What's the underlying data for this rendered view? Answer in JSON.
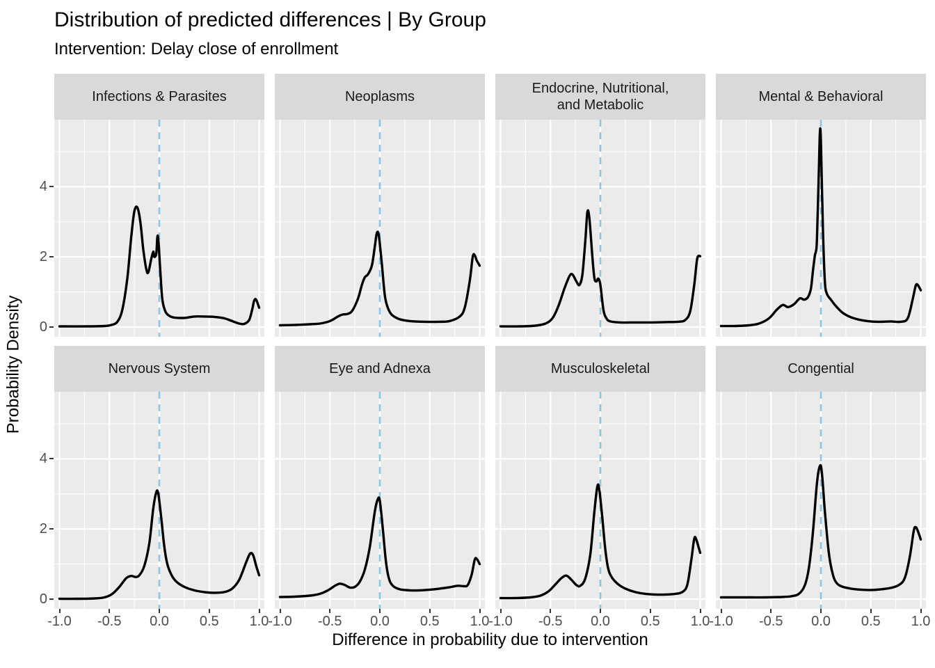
{
  "header": {
    "title": "Distribution of predicted differences | By Group",
    "subtitle": "Intervention: Delay close of enrollment"
  },
  "axes": {
    "x_label": "Difference in probability due to intervention",
    "y_label": "Probability Density",
    "x_ticks": [
      "-1.0",
      "-0.5",
      "0.0",
      "0.5",
      "1.0"
    ],
    "x_tick_values": [
      -1,
      -0.5,
      0,
      0.5,
      1
    ],
    "x_minor_values": [
      -0.75,
      -0.25,
      0.25,
      0.75
    ],
    "y_ticks": [
      "0",
      "2",
      "4"
    ],
    "y_tick_values": [
      0,
      2,
      4
    ],
    "y_minor_values": [
      1,
      3,
      5
    ],
    "x_range": [
      -1,
      1
    ],
    "y_range": [
      0,
      5.9
    ],
    "grid": "on"
  },
  "colors": {
    "panel_bg": "#EBEBEB",
    "strip_bg": "#D9D9D9",
    "gridline": "#FFFFFF",
    "curve": "#000000",
    "reference_line": "#8CC6E3",
    "tick_text": "#4D4D4D",
    "tick_mark": "#333333",
    "text": "#000000"
  },
  "chart_data": {
    "type": "line",
    "subtype": "faceted-density",
    "title": "Distribution of predicted differences | By Group",
    "subtitle": "Intervention: Delay close of enrollment",
    "xlabel": "Difference in probability due to intervention",
    "ylabel": "Probability Density",
    "xlim": [
      -1,
      1
    ],
    "ylim": [
      0,
      5.9
    ],
    "legend": "none",
    "reference_line_x": 0,
    "facets": [
      {
        "label": "Infections & Parasites",
        "points": [
          [
            -1,
            0.02
          ],
          [
            -0.7,
            0.02
          ],
          [
            -0.55,
            0.03
          ],
          [
            -0.48,
            0.06
          ],
          [
            -0.42,
            0.15
          ],
          [
            -0.37,
            0.5
          ],
          [
            -0.32,
            1.4
          ],
          [
            -0.28,
            2.6
          ],
          [
            -0.25,
            3.3
          ],
          [
            -0.22,
            3.41
          ],
          [
            -0.19,
            3.0
          ],
          [
            -0.16,
            2.2
          ],
          [
            -0.13,
            1.65
          ],
          [
            -0.11,
            1.56
          ],
          [
            -0.08,
            1.95
          ],
          [
            -0.06,
            2.15
          ],
          [
            -0.05,
            2.0
          ],
          [
            -0.03,
            2.1
          ],
          [
            -0.02,
            2.55
          ],
          [
            -0.01,
            2.5
          ],
          [
            0.01,
            1.6
          ],
          [
            0.03,
            0.8
          ],
          [
            0.06,
            0.45
          ],
          [
            0.1,
            0.32
          ],
          [
            0.15,
            0.27
          ],
          [
            0.25,
            0.26
          ],
          [
            0.35,
            0.3
          ],
          [
            0.45,
            0.3
          ],
          [
            0.55,
            0.29
          ],
          [
            0.65,
            0.25
          ],
          [
            0.72,
            0.18
          ],
          [
            0.8,
            0.1
          ],
          [
            0.85,
            0.09
          ],
          [
            0.9,
            0.2
          ],
          [
            0.93,
            0.5
          ],
          [
            0.95,
            0.75
          ],
          [
            0.97,
            0.78
          ],
          [
            1,
            0.55
          ]
        ]
      },
      {
        "label": "Neoplasms",
        "points": [
          [
            -1,
            0.05
          ],
          [
            -0.85,
            0.06
          ],
          [
            -0.7,
            0.08
          ],
          [
            -0.6,
            0.1
          ],
          [
            -0.5,
            0.17
          ],
          [
            -0.42,
            0.3
          ],
          [
            -0.37,
            0.36
          ],
          [
            -0.33,
            0.37
          ],
          [
            -0.28,
            0.45
          ],
          [
            -0.22,
            0.8
          ],
          [
            -0.18,
            1.2
          ],
          [
            -0.15,
            1.42
          ],
          [
            -0.12,
            1.5
          ],
          [
            -0.08,
            1.75
          ],
          [
            -0.05,
            2.3
          ],
          [
            -0.03,
            2.68
          ],
          [
            -0.01,
            2.6
          ],
          [
            0.02,
            1.8
          ],
          [
            0.05,
            0.9
          ],
          [
            0.08,
            0.55
          ],
          [
            0.12,
            0.35
          ],
          [
            0.2,
            0.22
          ],
          [
            0.3,
            0.17
          ],
          [
            0.45,
            0.15
          ],
          [
            0.6,
            0.15
          ],
          [
            0.7,
            0.17
          ],
          [
            0.8,
            0.3
          ],
          [
            0.85,
            0.55
          ],
          [
            0.9,
            1.3
          ],
          [
            0.93,
            2.0
          ],
          [
            0.95,
            2.05
          ],
          [
            0.97,
            1.9
          ],
          [
            1,
            1.75
          ]
        ]
      },
      {
        "label": "Endocrine, Nutritional,\nand Metabolic",
        "points": [
          [
            -1,
            0.02
          ],
          [
            -0.8,
            0.02
          ],
          [
            -0.65,
            0.04
          ],
          [
            -0.55,
            0.1
          ],
          [
            -0.48,
            0.25
          ],
          [
            -0.42,
            0.6
          ],
          [
            -0.36,
            1.1
          ],
          [
            -0.31,
            1.45
          ],
          [
            -0.28,
            1.5
          ],
          [
            -0.24,
            1.3
          ],
          [
            -0.21,
            1.2
          ],
          [
            -0.18,
            1.5
          ],
          [
            -0.15,
            2.5
          ],
          [
            -0.13,
            3.28
          ],
          [
            -0.11,
            3.1
          ],
          [
            -0.08,
            2.0
          ],
          [
            -0.06,
            1.4
          ],
          [
            -0.04,
            1.3
          ],
          [
            -0.02,
            1.38
          ],
          [
            0.0,
            1.2
          ],
          [
            0.03,
            0.5
          ],
          [
            0.06,
            0.25
          ],
          [
            0.1,
            0.16
          ],
          [
            0.2,
            0.13
          ],
          [
            0.35,
            0.13
          ],
          [
            0.5,
            0.13
          ],
          [
            0.65,
            0.14
          ],
          [
            0.78,
            0.15
          ],
          [
            0.85,
            0.2
          ],
          [
            0.9,
            0.45
          ],
          [
            0.94,
            1.2
          ],
          [
            0.97,
            1.95
          ],
          [
            1,
            2.02
          ]
        ]
      },
      {
        "label": "Mental & Behavioral",
        "points": [
          [
            -1,
            0.03
          ],
          [
            -0.85,
            0.03
          ],
          [
            -0.72,
            0.05
          ],
          [
            -0.62,
            0.1
          ],
          [
            -0.52,
            0.25
          ],
          [
            -0.44,
            0.5
          ],
          [
            -0.38,
            0.63
          ],
          [
            -0.33,
            0.57
          ],
          [
            -0.27,
            0.65
          ],
          [
            -0.21,
            0.82
          ],
          [
            -0.17,
            0.78
          ],
          [
            -0.13,
            0.85
          ],
          [
            -0.1,
            1.1
          ],
          [
            -0.08,
            1.6
          ],
          [
            -0.06,
            2.05
          ],
          [
            -0.05,
            2.15
          ],
          [
            -0.04,
            2.5
          ],
          [
            -0.02,
            4.5
          ],
          [
            -0.01,
            5.57
          ],
          [
            0.0,
            5.3
          ],
          [
            0.02,
            2.8
          ],
          [
            0.04,
            1.3
          ],
          [
            0.06,
            0.95
          ],
          [
            0.1,
            0.78
          ],
          [
            0.15,
            0.6
          ],
          [
            0.22,
            0.4
          ],
          [
            0.3,
            0.28
          ],
          [
            0.4,
            0.2
          ],
          [
            0.5,
            0.16
          ],
          [
            0.6,
            0.15
          ],
          [
            0.7,
            0.16
          ],
          [
            0.8,
            0.15
          ],
          [
            0.87,
            0.25
          ],
          [
            0.92,
            0.8
          ],
          [
            0.95,
            1.18
          ],
          [
            0.97,
            1.2
          ],
          [
            1,
            1.05
          ]
        ]
      },
      {
        "label": "Nervous System",
        "points": [
          [
            -1,
            0.01
          ],
          [
            -0.8,
            0.01
          ],
          [
            -0.65,
            0.02
          ],
          [
            -0.55,
            0.05
          ],
          [
            -0.47,
            0.15
          ],
          [
            -0.4,
            0.35
          ],
          [
            -0.33,
            0.6
          ],
          [
            -0.28,
            0.66
          ],
          [
            -0.24,
            0.63
          ],
          [
            -0.2,
            0.68
          ],
          [
            -0.15,
            0.95
          ],
          [
            -0.1,
            1.6
          ],
          [
            -0.06,
            2.6
          ],
          [
            -0.03,
            3.05
          ],
          [
            -0.01,
            3.0
          ],
          [
            0.02,
            2.3
          ],
          [
            0.05,
            1.5
          ],
          [
            0.08,
            1.0
          ],
          [
            0.12,
            0.7
          ],
          [
            0.17,
            0.5
          ],
          [
            0.25,
            0.35
          ],
          [
            0.35,
            0.25
          ],
          [
            0.45,
            0.2
          ],
          [
            0.55,
            0.18
          ],
          [
            0.65,
            0.2
          ],
          [
            0.73,
            0.3
          ],
          [
            0.8,
            0.55
          ],
          [
            0.87,
            1.05
          ],
          [
            0.91,
            1.3
          ],
          [
            0.94,
            1.25
          ],
          [
            0.97,
            0.95
          ],
          [
            1,
            0.68
          ]
        ]
      },
      {
        "label": "Eye and Adnexa",
        "points": [
          [
            -1,
            0.06
          ],
          [
            -0.85,
            0.07
          ],
          [
            -0.7,
            0.1
          ],
          [
            -0.6,
            0.15
          ],
          [
            -0.52,
            0.25
          ],
          [
            -0.45,
            0.38
          ],
          [
            -0.4,
            0.44
          ],
          [
            -0.35,
            0.4
          ],
          [
            -0.3,
            0.33
          ],
          [
            -0.25,
            0.35
          ],
          [
            -0.2,
            0.5
          ],
          [
            -0.15,
            0.85
          ],
          [
            -0.1,
            1.5
          ],
          [
            -0.05,
            2.5
          ],
          [
            -0.02,
            2.85
          ],
          [
            0.0,
            2.8
          ],
          [
            0.03,
            2.0
          ],
          [
            0.06,
            1.1
          ],
          [
            0.09,
            0.6
          ],
          [
            0.13,
            0.38
          ],
          [
            0.2,
            0.28
          ],
          [
            0.3,
            0.25
          ],
          [
            0.4,
            0.25
          ],
          [
            0.5,
            0.27
          ],
          [
            0.6,
            0.3
          ],
          [
            0.7,
            0.34
          ],
          [
            0.78,
            0.38
          ],
          [
            0.84,
            0.37
          ],
          [
            0.88,
            0.4
          ],
          [
            0.92,
            0.7
          ],
          [
            0.95,
            1.12
          ],
          [
            0.97,
            1.15
          ],
          [
            1,
            1.0
          ]
        ]
      },
      {
        "label": "Musculoskeletal",
        "points": [
          [
            -1,
            0.03
          ],
          [
            -0.85,
            0.03
          ],
          [
            -0.7,
            0.05
          ],
          [
            -0.6,
            0.1
          ],
          [
            -0.52,
            0.22
          ],
          [
            -0.45,
            0.42
          ],
          [
            -0.39,
            0.6
          ],
          [
            -0.34,
            0.67
          ],
          [
            -0.29,
            0.55
          ],
          [
            -0.24,
            0.4
          ],
          [
            -0.2,
            0.38
          ],
          [
            -0.15,
            0.6
          ],
          [
            -0.1,
            1.3
          ],
          [
            -0.06,
            2.5
          ],
          [
            -0.03,
            3.22
          ],
          [
            -0.01,
            3.1
          ],
          [
            0.02,
            2.3
          ],
          [
            0.05,
            1.4
          ],
          [
            0.08,
            0.85
          ],
          [
            0.12,
            0.6
          ],
          [
            0.18,
            0.42
          ],
          [
            0.25,
            0.3
          ],
          [
            0.35,
            0.2
          ],
          [
            0.45,
            0.15
          ],
          [
            0.55,
            0.13
          ],
          [
            0.65,
            0.13
          ],
          [
            0.75,
            0.15
          ],
          [
            0.82,
            0.2
          ],
          [
            0.87,
            0.4
          ],
          [
            0.91,
            1.1
          ],
          [
            0.94,
            1.72
          ],
          [
            0.96,
            1.7
          ],
          [
            1,
            1.32
          ]
        ]
      },
      {
        "label": "Congential",
        "points": [
          [
            -1,
            0.05
          ],
          [
            -0.85,
            0.05
          ],
          [
            -0.7,
            0.05
          ],
          [
            -0.55,
            0.05
          ],
          [
            -0.4,
            0.06
          ],
          [
            -0.3,
            0.08
          ],
          [
            -0.22,
            0.15
          ],
          [
            -0.16,
            0.4
          ],
          [
            -0.12,
            0.9
          ],
          [
            -0.08,
            1.9
          ],
          [
            -0.04,
            3.3
          ],
          [
            -0.01,
            3.8
          ],
          [
            0.01,
            3.6
          ],
          [
            0.04,
            2.5
          ],
          [
            0.08,
            1.3
          ],
          [
            0.12,
            0.7
          ],
          [
            0.16,
            0.45
          ],
          [
            0.22,
            0.35
          ],
          [
            0.3,
            0.3
          ],
          [
            0.4,
            0.27
          ],
          [
            0.5,
            0.26
          ],
          [
            0.6,
            0.28
          ],
          [
            0.7,
            0.32
          ],
          [
            0.78,
            0.4
          ],
          [
            0.84,
            0.6
          ],
          [
            0.89,
            1.2
          ],
          [
            0.93,
            1.95
          ],
          [
            0.95,
            2.05
          ],
          [
            0.97,
            1.95
          ],
          [
            1,
            1.7
          ]
        ]
      }
    ]
  }
}
